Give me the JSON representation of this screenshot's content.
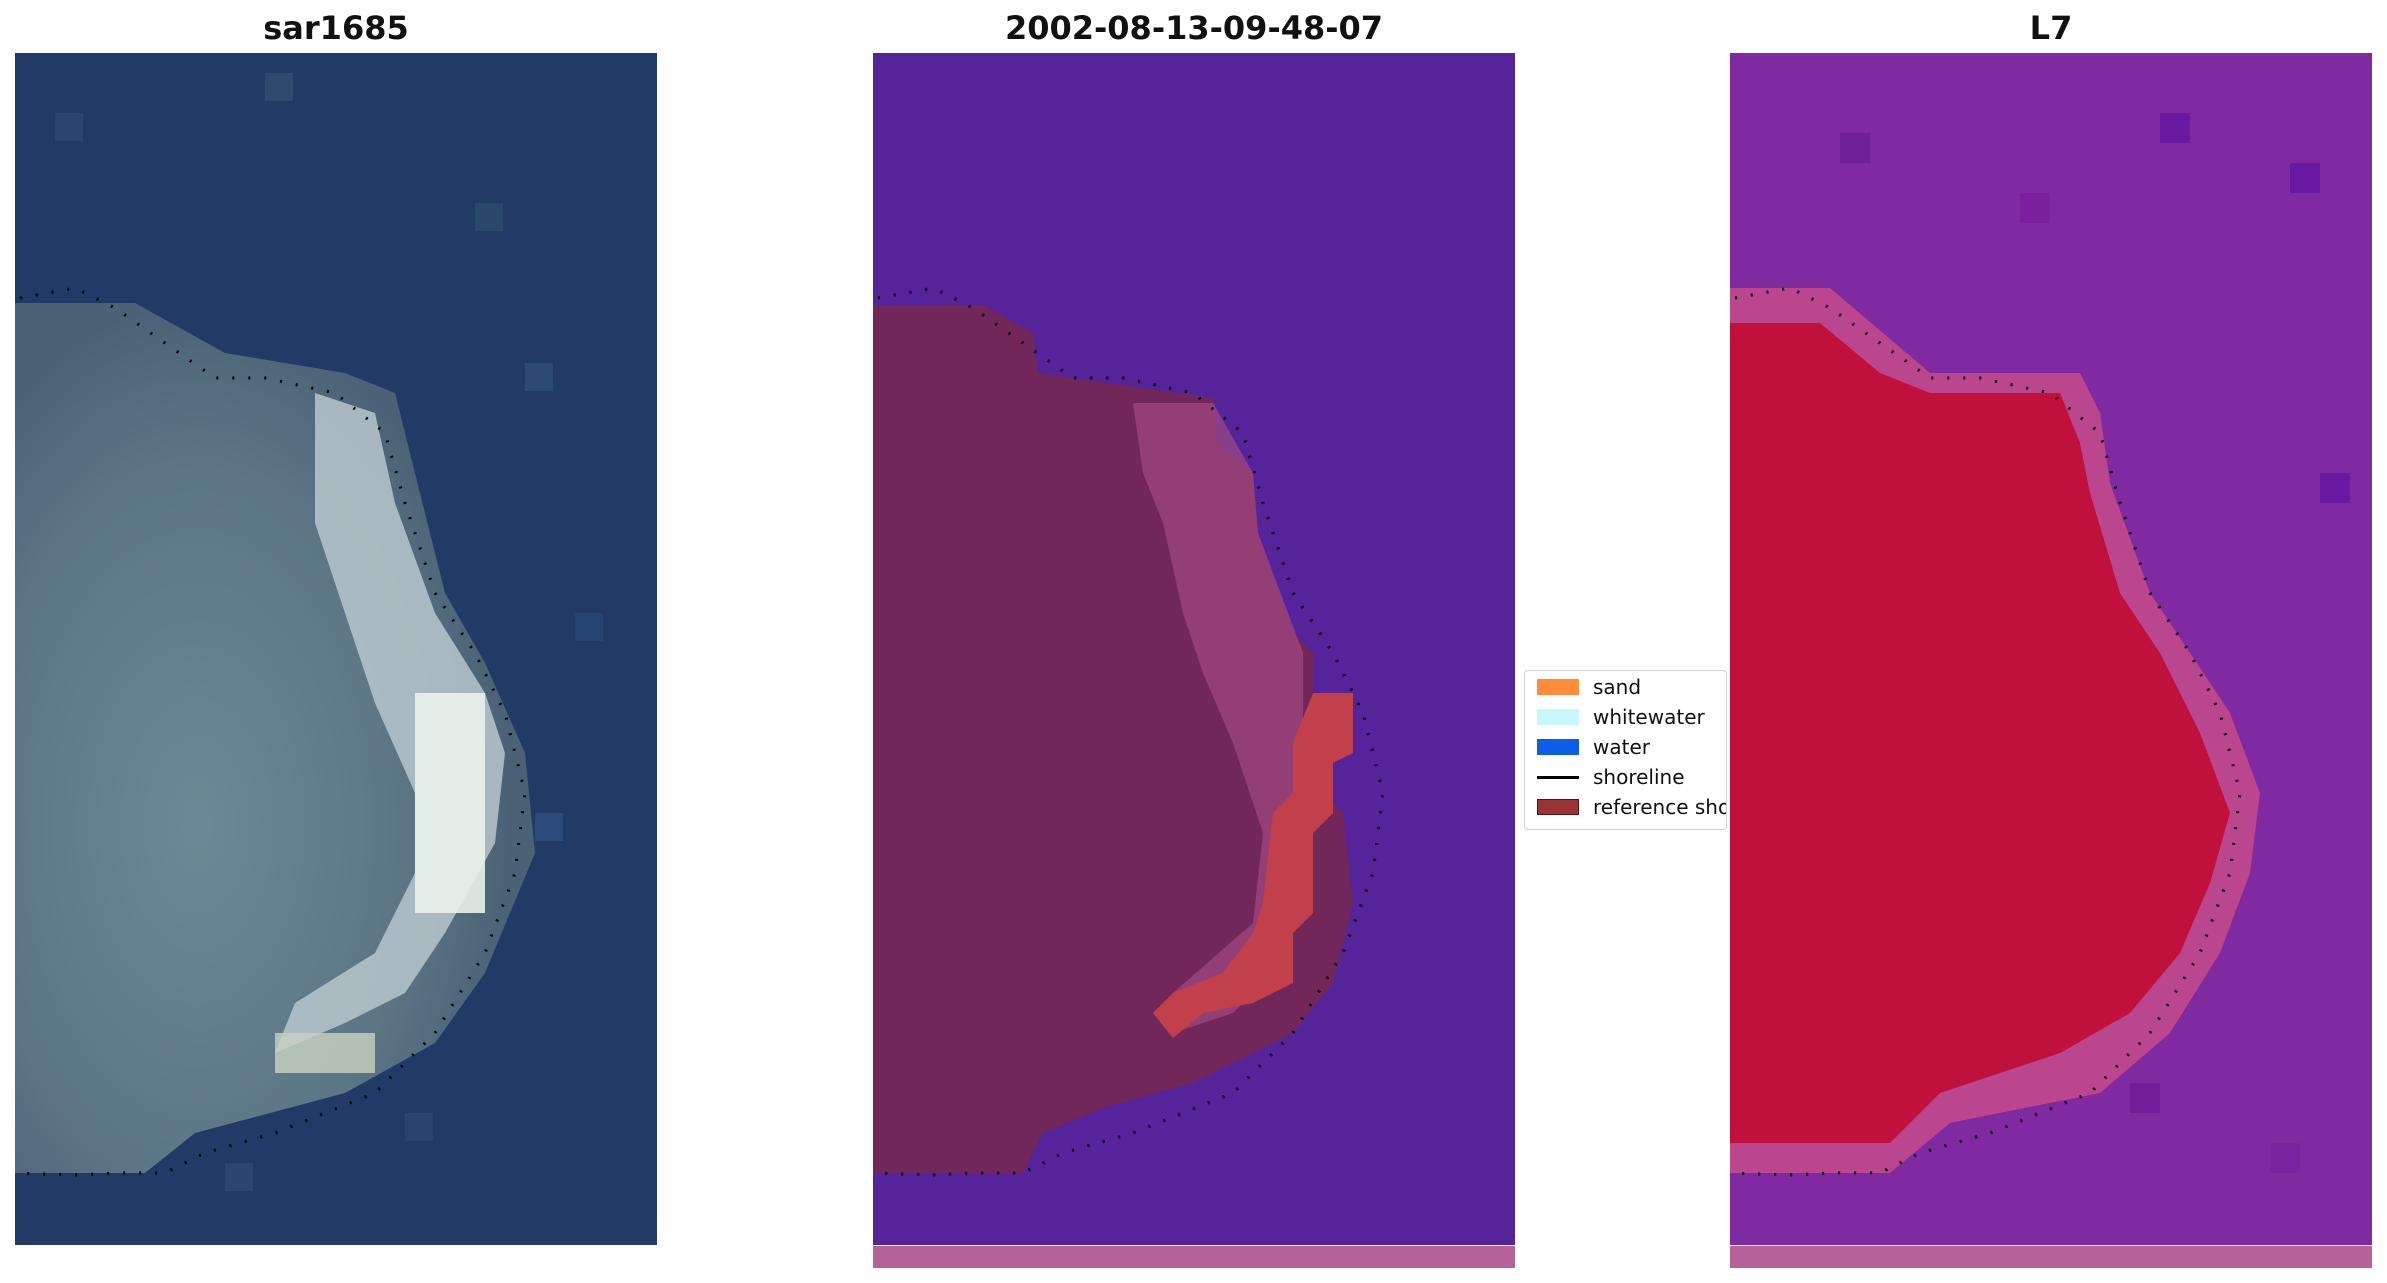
{
  "panels": [
    {
      "title": "sar1685"
    },
    {
      "title": "2002-08-13-09-48-07"
    },
    {
      "title": "L7"
    }
  ],
  "legend": {
    "items": [
      {
        "label": "sand",
        "color": "#ff8c3a"
      },
      {
        "label": "whitewater",
        "color": "#c8f7fb"
      },
      {
        "label": "water",
        "color": "#0a5ee8"
      },
      {
        "label": "shoreline",
        "color": "#000000"
      },
      {
        "label": "reference shoreline",
        "color": "#9a3336"
      }
    ]
  },
  "colors": {
    "ocean_rgb": "#223a66",
    "class_background": "#55239a",
    "class_land": "#712759",
    "class_highlight": "#c2404a",
    "index_background": "#7f2aa0",
    "index_land": "#c0103c",
    "bottom_strip": "#b6629a"
  }
}
